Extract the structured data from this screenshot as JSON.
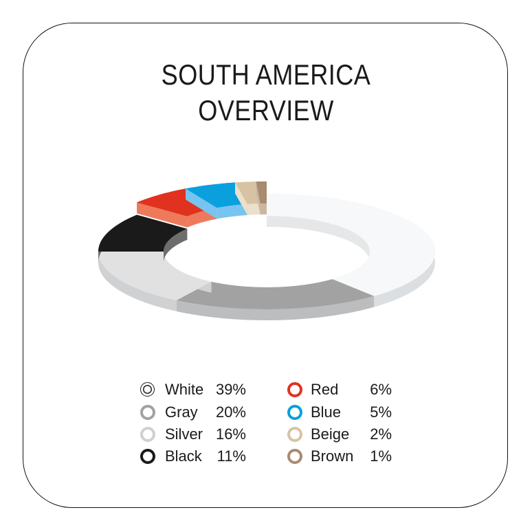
{
  "chart_data": {
    "type": "pie",
    "variant": "3d-donut",
    "title": [
      "SOUTH AMERICA",
      "OVERVIEW"
    ],
    "slices": [
      {
        "label": "White",
        "value": 39,
        "pct_label": "39%",
        "color": "#f7f8f9",
        "wall": "#dcdfe2",
        "raised": false
      },
      {
        "label": "Gray",
        "value": 20,
        "pct_label": "20%",
        "color": "#a2a2a2",
        "wall": "#bcbdbf",
        "raised": false
      },
      {
        "label": "Silver",
        "value": 16,
        "pct_label": "16%",
        "color": "#e1e1e2",
        "wall": "#cfd1d3",
        "raised": false
      },
      {
        "label": "Black",
        "value": 11,
        "pct_label": "11%",
        "color": "#1a1a1a",
        "wall": "#6d6d6d",
        "raised": false
      },
      {
        "label": "Red",
        "value": 6,
        "pct_label": "6%",
        "color": "#e0321f",
        "wall": "#ee7a5c",
        "raised": true
      },
      {
        "label": "Blue",
        "value": 5,
        "pct_label": "5%",
        "color": "#0aa0de",
        "wall": "#78c4f0",
        "raised": true
      },
      {
        "label": "Beige",
        "value": 2,
        "pct_label": "2%",
        "color": "#d7c3a3",
        "wall": "#ebe0cc",
        "raised": true
      },
      {
        "label": "Brown",
        "value": 1,
        "pct_label": "1%",
        "color": "#a88b70",
        "wall": "#cbb6a0",
        "raised": true
      }
    ],
    "legend_placement": "bottom"
  }
}
